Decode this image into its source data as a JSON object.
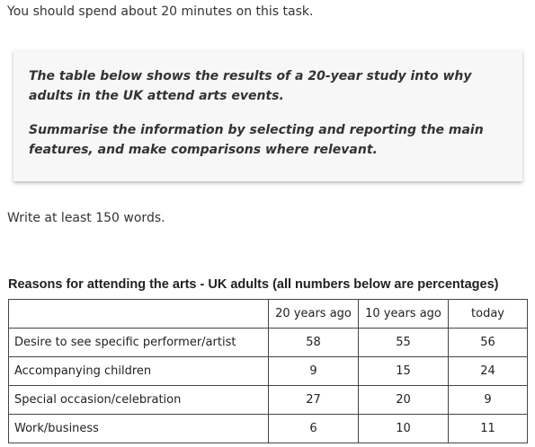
{
  "instruction": "You should spend about 20 minutes on this task.",
  "task": {
    "description": "The table below shows the results of a 20-year study into why adults in the UK attend arts events.",
    "summary_prompt": "Summarise the information by selecting and reporting the main features, and make comparisons where relevant."
  },
  "word_requirement": "Write at least 150 words.",
  "table": {
    "title": "Reasons for attending the arts - UK adults (all numbers below are percentages)",
    "headers": [
      "",
      "20 years ago",
      "10 years ago",
      "today"
    ],
    "rows": [
      {
        "reason": "Desire to see specific performer/artist",
        "values": [
          "58",
          "55",
          "56"
        ]
      },
      {
        "reason": "Accompanying children",
        "values": [
          "9",
          "15",
          "24"
        ]
      },
      {
        "reason": "Special occasion/celebration",
        "values": [
          "27",
          "20",
          "9"
        ]
      },
      {
        "reason": "Work/business",
        "values": [
          "6",
          "10",
          "11"
        ]
      }
    ]
  },
  "chart_data": {
    "type": "table",
    "title": "Reasons for attending the arts - UK adults (all numbers below are percentages)",
    "columns": [
      "20 years ago",
      "10 years ago",
      "today"
    ],
    "rows": [
      "Desire to see specific performer/artist",
      "Accompanying children",
      "Special occasion/celebration",
      "Work/business"
    ],
    "values": [
      [
        58,
        55,
        56
      ],
      [
        9,
        15,
        24
      ],
      [
        27,
        20,
        9
      ],
      [
        6,
        10,
        11
      ]
    ]
  }
}
